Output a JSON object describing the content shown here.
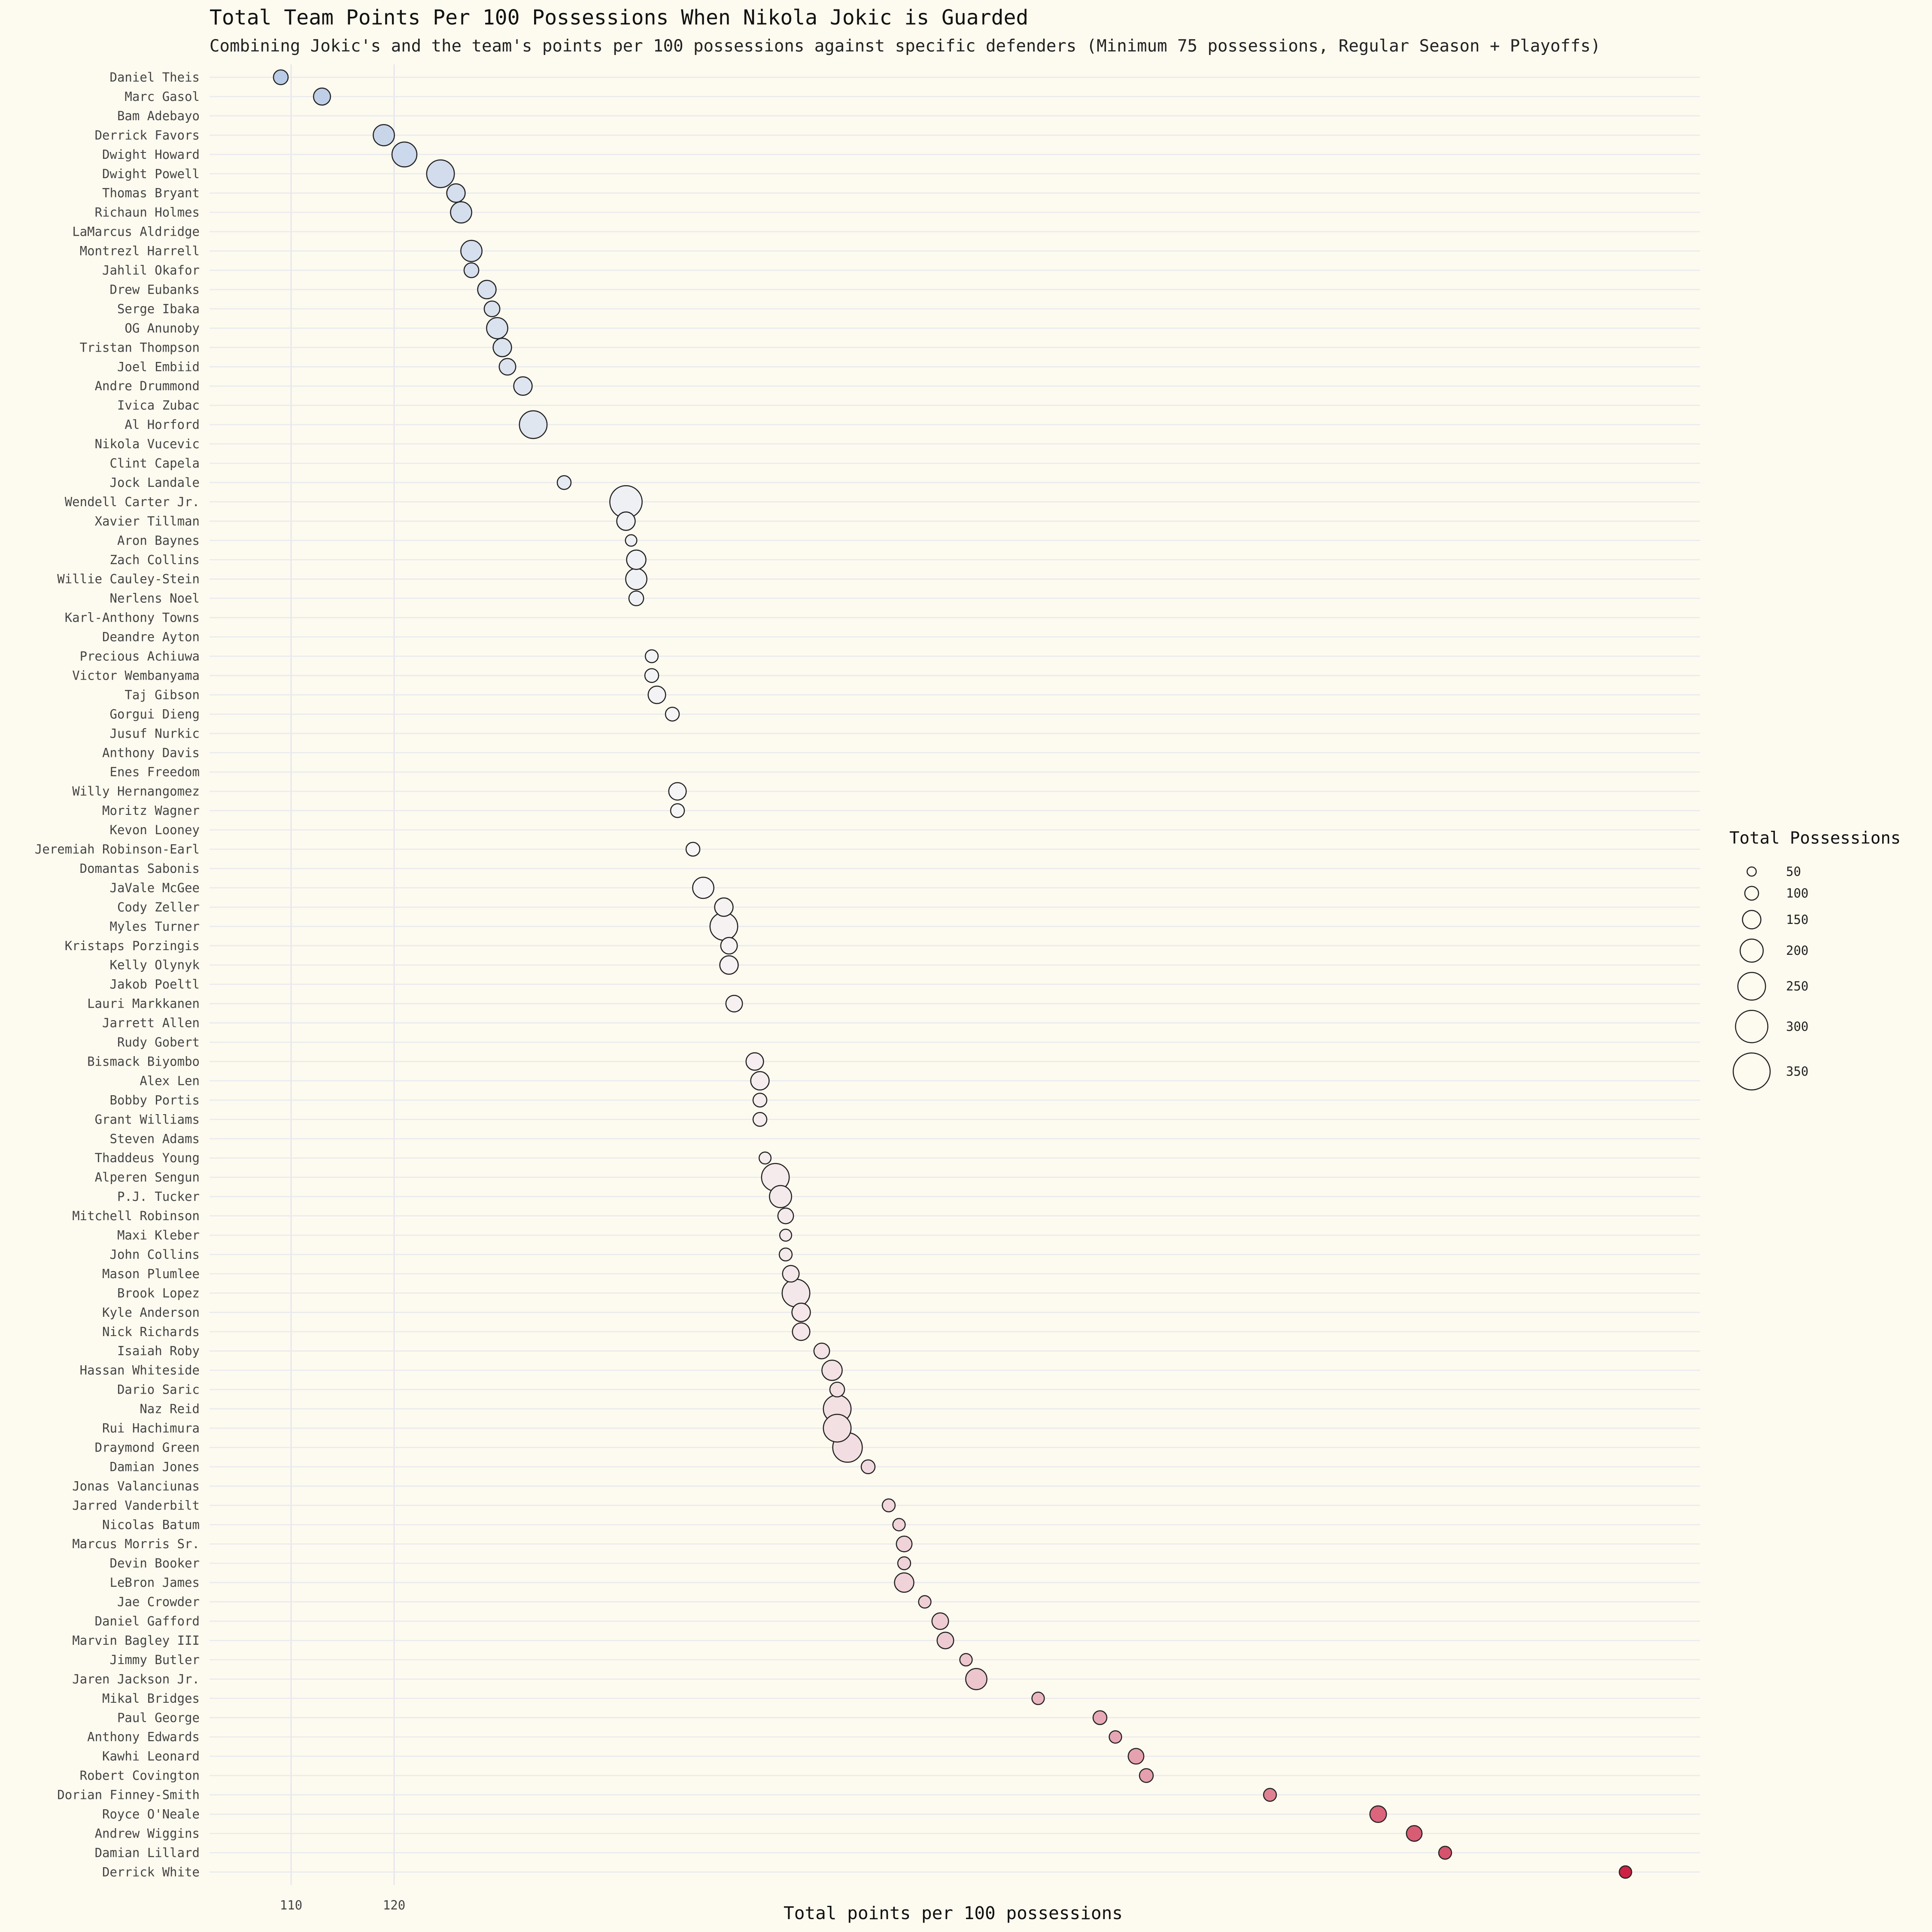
{
  "chart_data": {
    "type": "scatter",
    "title": "Total Team Points Per 100 Possessions When Nikola Jokic is Guarded",
    "subtitle": "Combining Jokic's and the team's points per 100 possessions against specific defenders (Minimum 75 possessions, Regular Season + Playoffs)",
    "xlabel": "Total points per 100 possessions",
    "ylabel": "",
    "x_ticks": [
      110,
      120
    ],
    "xlim": [
      106.3,
      250.5
    ],
    "grid": true,
    "legend": {
      "title": "Total Possessions",
      "placement": "right",
      "sizes": [
        50,
        100,
        150,
        200,
        250,
        300,
        350
      ]
    },
    "color_scale": {
      "low": "#b9cbe6",
      "mid": "#f7f6f6",
      "high": "#cc2244"
    },
    "points": [
      {
        "name": "Daniel Theis",
        "x": 109,
        "size": 110
      },
      {
        "name": "Marc Gasol",
        "x": 113,
        "size": 135
      },
      {
        "name": "Bam Adebayo",
        "x": null,
        "size": null
      },
      {
        "name": "Derrick Favors",
        "x": 119,
        "size": 180
      },
      {
        "name": "Dwight Howard",
        "x": 121,
        "size": 220
      },
      {
        "name": "Dwight Powell",
        "x": 124.5,
        "size": 250
      },
      {
        "name": "Thomas Bryant",
        "x": 126,
        "size": 150
      },
      {
        "name": "Richaun Holmes",
        "x": 126.5,
        "size": 180
      },
      {
        "name": "LaMarcus Aldridge",
        "x": null,
        "size": null
      },
      {
        "name": "Montrezl Harrell",
        "x": 127.5,
        "size": 180
      },
      {
        "name": "Jahlil Okafor",
        "x": 127.5,
        "size": 110
      },
      {
        "name": "Drew Eubanks",
        "x": 129,
        "size": 150
      },
      {
        "name": "Serge Ibaka",
        "x": 129.5,
        "size": 120
      },
      {
        "name": "OG Anunoby",
        "x": 130,
        "size": 180
      },
      {
        "name": "Tristan Thompson",
        "x": 130.5,
        "size": 150
      },
      {
        "name": "Joel Embiid",
        "x": 131,
        "size": 130
      },
      {
        "name": "Andre Drummond",
        "x": 132.5,
        "size": 150
      },
      {
        "name": "Ivica Zubac",
        "x": null,
        "size": null
      },
      {
        "name": "Al Horford",
        "x": 133.5,
        "size": 250
      },
      {
        "name": "Nikola Vucevic",
        "x": null,
        "size": null
      },
      {
        "name": "Clint Capela",
        "x": null,
        "size": null
      },
      {
        "name": "Jock Landale",
        "x": 136.5,
        "size": 100
      },
      {
        "name": "Wendell Carter Jr.",
        "x": 142.5,
        "size": 300
      },
      {
        "name": "Xavier Tillman",
        "x": 142.5,
        "size": 150
      },
      {
        "name": "Aron Baynes",
        "x": 143,
        "size": 75
      },
      {
        "name": "Zach Collins",
        "x": 143.5,
        "size": 160
      },
      {
        "name": "Willie Cauley-Stein",
        "x": 143.5,
        "size": 180
      },
      {
        "name": "Nerlens Noel",
        "x": 143.5,
        "size": 110
      },
      {
        "name": "Karl-Anthony Towns",
        "x": null,
        "size": null
      },
      {
        "name": "Deandre Ayton",
        "x": null,
        "size": null
      },
      {
        "name": "Precious Achiuwa",
        "x": 145,
        "size": 90
      },
      {
        "name": "Victor Wembanyama",
        "x": 145,
        "size": 100
      },
      {
        "name": "Taj Gibson",
        "x": 145.5,
        "size": 140
      },
      {
        "name": "Gorgui Dieng",
        "x": 147,
        "size": 100
      },
      {
        "name": "Jusuf Nurkic",
        "x": null,
        "size": null
      },
      {
        "name": "Anthony Davis",
        "x": null,
        "size": null
      },
      {
        "name": "Enes Freedom",
        "x": null,
        "size": null
      },
      {
        "name": "Willy Hernangomez",
        "x": 147.5,
        "size": 140
      },
      {
        "name": "Moritz Wagner",
        "x": 147.5,
        "size": 100
      },
      {
        "name": "Kevon Looney",
        "x": null,
        "size": null
      },
      {
        "name": "Jeremiah Robinson-Earl",
        "x": 149,
        "size": 100
      },
      {
        "name": "Domantas Sabonis",
        "x": null,
        "size": null
      },
      {
        "name": "JaVale McGee",
        "x": 150,
        "size": 180
      },
      {
        "name": "Cody Zeller",
        "x": 152,
        "size": 150
      },
      {
        "name": "Myles Turner",
        "x": 152,
        "size": 250
      },
      {
        "name": "Kristaps Porzingis",
        "x": 152.5,
        "size": 130
      },
      {
        "name": "Kelly Olynyk",
        "x": 152.5,
        "size": 150
      },
      {
        "name": "Jakob Poeltl",
        "x": null,
        "size": null
      },
      {
        "name": "Lauri Markkanen",
        "x": 153,
        "size": 130
      },
      {
        "name": "Jarrett Allen",
        "x": null,
        "size": null
      },
      {
        "name": "Rudy Gobert",
        "x": null,
        "size": null
      },
      {
        "name": "Bismack Biyombo",
        "x": 155,
        "size": 140
      },
      {
        "name": "Alex Len",
        "x": 155.5,
        "size": 150
      },
      {
        "name": "Bobby Portis",
        "x": 155.5,
        "size": 100
      },
      {
        "name": "Grant Williams",
        "x": 155.5,
        "size": 100
      },
      {
        "name": "Steven Adams",
        "x": null,
        "size": null
      },
      {
        "name": "Thaddeus Young",
        "x": 156,
        "size": 80
      },
      {
        "name": "Alperen Sengun",
        "x": 157,
        "size": 250
      },
      {
        "name": "P.J. Tucker",
        "x": 157.5,
        "size": 190
      },
      {
        "name": "Mitchell Robinson",
        "x": 158,
        "size": 120
      },
      {
        "name": "Maxi Kleber",
        "x": 158,
        "size": 80
      },
      {
        "name": "John Collins",
        "x": 158,
        "size": 90
      },
      {
        "name": "Mason Plumlee",
        "x": 158.5,
        "size": 130
      },
      {
        "name": "Brook Lopez",
        "x": 159,
        "size": 250
      },
      {
        "name": "Kyle Anderson",
        "x": 159.5,
        "size": 150
      },
      {
        "name": "Nick Richards",
        "x": 159.5,
        "size": 140
      },
      {
        "name": "Isaiah Roby",
        "x": 161.5,
        "size": 120
      },
      {
        "name": "Hassan Whiteside",
        "x": 162.5,
        "size": 170
      },
      {
        "name": "Dario Saric",
        "x": 163,
        "size": 110
      },
      {
        "name": "Naz Reid",
        "x": 163,
        "size": 250
      },
      {
        "name": "Rui Hachimura",
        "x": 163,
        "size": 250
      },
      {
        "name": "Draymond Green",
        "x": 164,
        "size": 270
      },
      {
        "name": "Damian Jones",
        "x": 166,
        "size": 100
      },
      {
        "name": "Jonas Valanciunas",
        "x": null,
        "size": null
      },
      {
        "name": "Jarred Vanderbilt",
        "x": 168,
        "size": 90
      },
      {
        "name": "Nicolas Batum",
        "x": 169,
        "size": 85
      },
      {
        "name": "Marcus Morris Sr.",
        "x": 169.5,
        "size": 120
      },
      {
        "name": "Devin Booker",
        "x": 169.5,
        "size": 90
      },
      {
        "name": "LeBron James",
        "x": 169.5,
        "size": 160
      },
      {
        "name": "Jae Crowder",
        "x": 171.5,
        "size": 85
      },
      {
        "name": "Daniel Gafford",
        "x": 173,
        "size": 130
      },
      {
        "name": "Marvin Bagley III",
        "x": 173.5,
        "size": 130
      },
      {
        "name": "Jimmy Butler",
        "x": 175.5,
        "size": 85
      },
      {
        "name": "Jaren Jackson Jr.",
        "x": 176.5,
        "size": 180
      },
      {
        "name": "Mikal Bridges",
        "x": 182.5,
        "size": 85
      },
      {
        "name": "Paul George",
        "x": 188.5,
        "size": 100
      },
      {
        "name": "Anthony Edwards",
        "x": 190,
        "size": 85
      },
      {
        "name": "Kawhi Leonard",
        "x": 192,
        "size": 120
      },
      {
        "name": "Robert Covington",
        "x": 193,
        "size": 100
      },
      {
        "name": "Dorian Finney-Smith",
        "x": 205,
        "size": 90
      },
      {
        "name": "Royce O'Neale",
        "x": 215.5,
        "size": 130
      },
      {
        "name": "Andrew Wiggins",
        "x": 219,
        "size": 120
      },
      {
        "name": "Damian Lillard",
        "x": 222,
        "size": 90
      },
      {
        "name": "Derrick White",
        "x": 239.5,
        "size": 85
      }
    ]
  }
}
